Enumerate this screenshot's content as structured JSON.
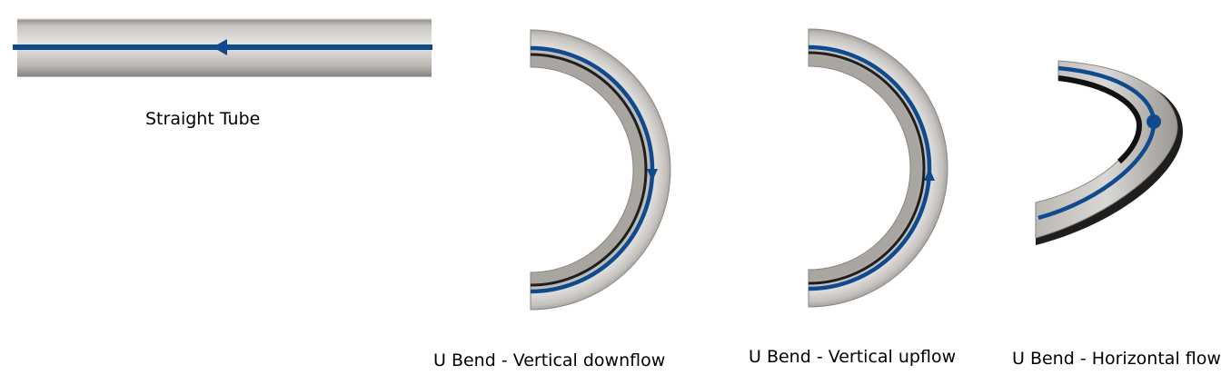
{
  "colors": {
    "flow_line": "#0f4a8e",
    "tube_light": "#e8e6e3",
    "tube_mid": "#b4b1ad",
    "tube_dark": "#8e8a86",
    "tube_inner_shadow": "#1e1e1e"
  },
  "figures": [
    {
      "id": "straight",
      "caption": "Straight Tube",
      "flow_marker": "arrow-left"
    },
    {
      "id": "downflow",
      "caption": "U Bend - Vertical downflow",
      "flow_marker": "arrow-down"
    },
    {
      "id": "upflow",
      "caption": "U Bend - Vertical upflow",
      "flow_marker": "arrow-up"
    },
    {
      "id": "horizontal",
      "caption": "U Bend - Horizontal flow",
      "flow_marker": "dot"
    }
  ]
}
